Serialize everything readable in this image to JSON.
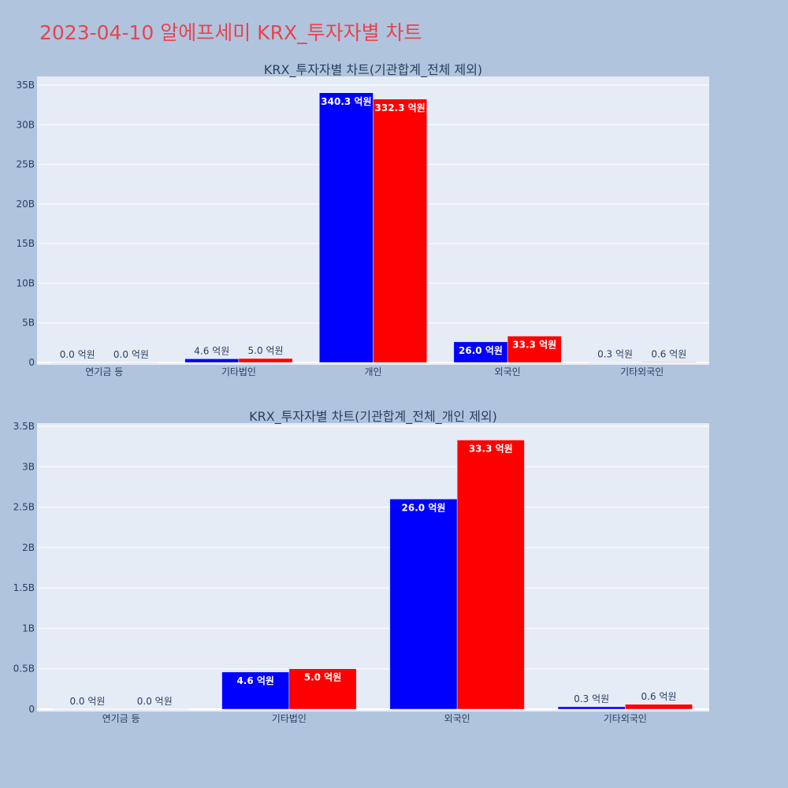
{
  "page_title": "2023-04-10 알에프세미 KRX_투자자별 차트",
  "colors": {
    "series_a": "#0000ff",
    "series_b": "#ff0000",
    "plot_bg": "#e5ecf6",
    "page_bg": "#b0c4de",
    "title": "#e8434f"
  },
  "chart_data": [
    {
      "type": "bar",
      "title": "KRX_투자자별 차트(기관합계_전체 제외)",
      "categories": [
        "연기금 등",
        "기타법인",
        "개인",
        "외국인",
        "기타외국인"
      ],
      "series": [
        {
          "values": [
            0.0,
            0.46,
            34.03,
            2.6,
            0.03
          ],
          "labels": [
            "0.0 억원",
            "4.6 억원",
            "340.3 억원",
            "26.0 억원",
            "0.3 억원"
          ],
          "color": "#0000ff"
        },
        {
          "values": [
            0.0,
            0.5,
            33.23,
            3.33,
            0.06
          ],
          "labels": [
            "0.0 억원",
            "5.0 억원",
            "332.3 억원",
            "33.3 억원",
            "0.6 억원"
          ],
          "color": "#ff0000"
        }
      ],
      "value_unit": "B",
      "ylim": [
        0,
        35
      ],
      "yticks": [
        "0",
        "5B",
        "10B",
        "15B",
        "20B",
        "25B",
        "30B",
        "35B"
      ],
      "ytick_values": [
        0,
        5,
        10,
        15,
        20,
        25,
        30,
        35
      ],
      "grid": true
    },
    {
      "type": "bar",
      "title": "KRX_투자자별 차트(기관합계_전체_개인 제외)",
      "categories": [
        "연기금 등",
        "기타법인",
        "외국인",
        "기타외국인"
      ],
      "series": [
        {
          "values": [
            0.0,
            0.46,
            2.6,
            0.03
          ],
          "labels": [
            "0.0 억원",
            "4.6 억원",
            "26.0 억원",
            "0.3 억원"
          ],
          "color": "#0000ff"
        },
        {
          "values": [
            0.0,
            0.5,
            3.33,
            0.06
          ],
          "labels": [
            "0.0 억원",
            "5.0 억원",
            "33.3 억원",
            "0.6 억원"
          ],
          "color": "#ff0000"
        }
      ],
      "value_unit": "B",
      "ylim": [
        0,
        3.5
      ],
      "yticks": [
        "0",
        "0.5B",
        "1B",
        "1.5B",
        "2B",
        "2.5B",
        "3B",
        "3.5B"
      ],
      "ytick_values": [
        0,
        0.5,
        1,
        1.5,
        2,
        2.5,
        3,
        3.5
      ],
      "grid": true
    }
  ]
}
